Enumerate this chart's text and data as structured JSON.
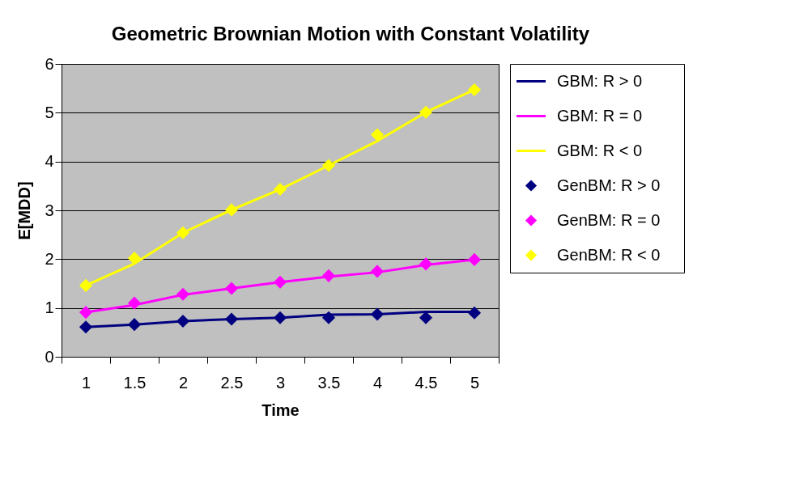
{
  "chart_data": {
    "type": "line",
    "title": "Geometric Brownian Motion with Constant Volatility",
    "xlabel": "Time",
    "ylabel": "E[MDD]",
    "categories": [
      "1",
      "1.5",
      "2",
      "2.5",
      "3",
      "3.5",
      "4",
      "4.5",
      "5"
    ],
    "series": [
      {
        "name": "GBM:  R > 0",
        "color": "#000080",
        "values": [
          0.61,
          0.66,
          0.73,
          0.77,
          0.8,
          0.86,
          0.87,
          0.92,
          0.92
        ]
      },
      {
        "name": "GBM:  R = 0",
        "color": "#ff00ff",
        "values": [
          0.91,
          1.06,
          1.27,
          1.4,
          1.53,
          1.64,
          1.73,
          1.88,
          1.99
        ]
      },
      {
        "name": "GBM:  R < 0",
        "color": "#ffff00",
        "values": [
          1.46,
          1.91,
          2.54,
          3.01,
          3.43,
          3.92,
          4.42,
          5.01,
          5.47
        ]
      },
      {
        "name": "GenBM:  R > 0",
        "color": "#000080",
        "type": "scatter",
        "marker": "diamond",
        "values": [
          0.61,
          0.66,
          0.73,
          0.77,
          0.8,
          0.8,
          0.87,
          0.8,
          0.9
        ]
      },
      {
        "name": "GenBM:  R = 0",
        "color": "#ff00ff",
        "type": "scatter",
        "marker": "diamond",
        "values": [
          0.91,
          1.1,
          1.28,
          1.4,
          1.53,
          1.66,
          1.75,
          1.9,
          1.99
        ]
      },
      {
        "name": "GenBM:  R < 0",
        "color": "#ffff00",
        "type": "scatter",
        "marker": "diamond",
        "values": [
          1.46,
          2.02,
          2.54,
          3.01,
          3.43,
          3.92,
          4.55,
          5.01,
          5.47
        ]
      }
    ],
    "ylim": [
      0,
      6
    ],
    "yticks": [
      0,
      1,
      2,
      3,
      4,
      5,
      6
    ],
    "grid": "y",
    "legend": "right"
  }
}
